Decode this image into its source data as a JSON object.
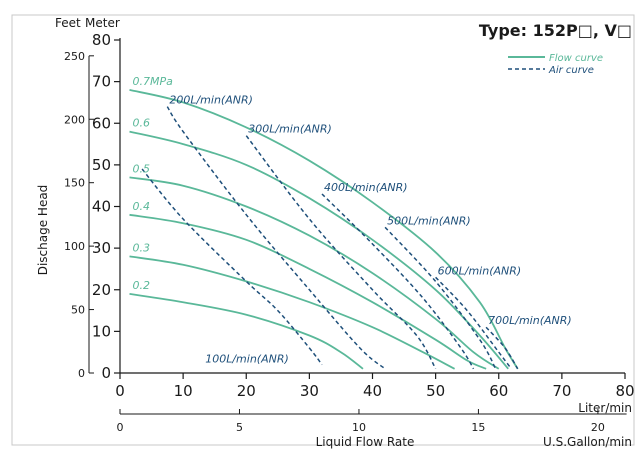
{
  "chart_data": {
    "type": "line",
    "title": "Type: 152P□, V□",
    "xlabel": "Liquid Flow Rate",
    "ylabel": "Dischage Head",
    "y_units": {
      "left": "Feet",
      "right": "Meter"
    },
    "x_units": {
      "primary": "Liter/min",
      "secondary": "U.S.Gallon/min"
    },
    "xlim": [
      0,
      80
    ],
    "ylim": [
      0,
      80
    ],
    "x_ticks": [
      0,
      10,
      20,
      30,
      40,
      50,
      60,
      70,
      80
    ],
    "y_ticks": [
      0,
      10,
      20,
      30,
      40,
      50,
      60,
      70,
      80
    ],
    "x2_ticks": [
      0,
      5,
      10,
      15,
      20
    ],
    "y_feet_ticks": [
      0,
      50,
      100,
      150,
      200,
      250
    ],
    "legend": {
      "position": "top-right",
      "items": [
        {
          "label": "Flow curve",
          "color": "#5ab899",
          "dash": false
        },
        {
          "label": "Air curve",
          "color": "#1e4f7a",
          "dash": true
        }
      ]
    },
    "colors": {
      "flow": "#5ab899",
      "air": "#1e4f7a"
    },
    "flow_curves": [
      {
        "label": "0.7MPa",
        "points": [
          [
            1.5,
            68
          ],
          [
            10,
            65
          ],
          [
            20,
            59
          ],
          [
            30,
            51
          ],
          [
            40,
            41
          ],
          [
            50,
            29
          ],
          [
            57,
            17
          ],
          [
            61,
            6
          ],
          [
            63,
            1
          ]
        ]
      },
      {
        "label": "0.6",
        "points": [
          [
            1.5,
            58
          ],
          [
            10,
            55
          ],
          [
            20,
            50
          ],
          [
            30,
            42
          ],
          [
            40,
            32
          ],
          [
            50,
            20
          ],
          [
            57,
            9
          ],
          [
            61.5,
            1
          ]
        ]
      },
      {
        "label": "0.5",
        "points": [
          [
            1.5,
            47
          ],
          [
            10,
            45
          ],
          [
            20,
            40
          ],
          [
            30,
            33
          ],
          [
            40,
            24
          ],
          [
            50,
            13
          ],
          [
            56,
            5
          ],
          [
            60,
            1
          ]
        ]
      },
      {
        "label": "0.4",
        "points": [
          [
            1.5,
            38
          ],
          [
            10,
            36
          ],
          [
            20,
            32
          ],
          [
            30,
            25
          ],
          [
            40,
            17
          ],
          [
            50,
            8
          ],
          [
            55,
            3
          ],
          [
            58,
            1
          ]
        ]
      },
      {
        "label": "0.3",
        "points": [
          [
            1.5,
            28
          ],
          [
            10,
            26
          ],
          [
            20,
            22
          ],
          [
            30,
            17
          ],
          [
            40,
            11
          ],
          [
            48,
            5
          ],
          [
            53,
            1
          ]
        ]
      },
      {
        "label": "0.2",
        "points": [
          [
            1.5,
            19
          ],
          [
            10,
            17
          ],
          [
            20,
            14
          ],
          [
            30,
            9
          ],
          [
            35,
            5
          ],
          [
            38.5,
            1
          ]
        ]
      }
    ],
    "air_curves": [
      {
        "label": "100L/min(ANR)",
        "points": [
          [
            3.5,
            49
          ],
          [
            10,
            37
          ],
          [
            20,
            22
          ],
          [
            25,
            15
          ],
          [
            30,
            6
          ],
          [
            32,
            2
          ]
        ]
      },
      {
        "label": "200L/min(ANR)",
        "points": [
          [
            7.5,
            64
          ],
          [
            10,
            58
          ],
          [
            20,
            38
          ],
          [
            30,
            20
          ],
          [
            38,
            6
          ],
          [
            42,
            1
          ]
        ]
      },
      {
        "label": "300L/min(ANR)",
        "points": [
          [
            20,
            57
          ],
          [
            30,
            37
          ],
          [
            40,
            20
          ],
          [
            47,
            9
          ],
          [
            50,
            1
          ]
        ]
      },
      {
        "label": "400L/min(ANR)",
        "points": [
          [
            32,
            43
          ],
          [
            40,
            31
          ],
          [
            48,
            18
          ],
          [
            54,
            6
          ],
          [
            56,
            1
          ]
        ]
      },
      {
        "label": "500L/min(ANR)",
        "points": [
          [
            42,
            35
          ],
          [
            50,
            22
          ],
          [
            57,
            8
          ],
          [
            59.5,
            1
          ]
        ]
      },
      {
        "label": "600L/min(ANR)",
        "points": [
          [
            50,
            23
          ],
          [
            55,
            15
          ],
          [
            60,
            5
          ],
          [
            62,
            1
          ]
        ]
      },
      {
        "label": "700L/min(ANR)",
        "points": [
          [
            58,
            11
          ],
          [
            61,
            6
          ],
          [
            63,
            1
          ]
        ]
      }
    ]
  }
}
